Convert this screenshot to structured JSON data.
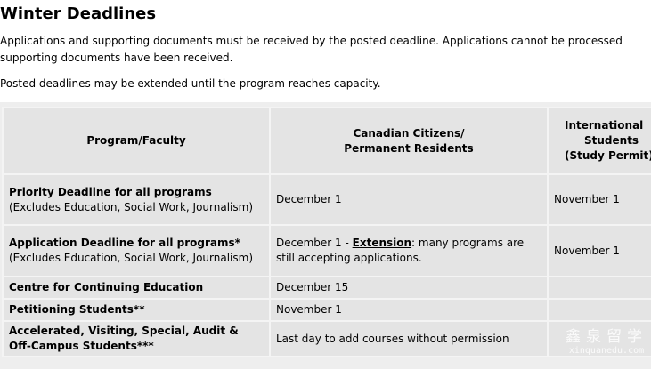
{
  "title": "Winter Deadlines",
  "intro": "Applications and supporting documents must be received by the posted deadline.  Applications cannot be processed",
  "intro_cont": "supporting documents have been received.",
  "note": "Posted deadlines may be extended until the program  reaches capacity.",
  "table": {
    "headers": {
      "program": "Program/Faculty",
      "canadian_1": "Canadian Citizens/",
      "canadian_2": "Permanent Residents",
      "intl_1": "International",
      "intl_2": "Students",
      "intl_3": "(Study Permit)"
    },
    "rows": [
      {
        "program": "Priority Deadline for all programs",
        "sub": "(Excludes Education, Social Work, Journalism)",
        "canadian": "December 1",
        "intl": "November 1"
      },
      {
        "program": "Application Deadline for all programs*",
        "sub": "(Excludes Education, Social Work, Journalism)",
        "canadian_pre": "December 1 - ",
        "canadian_link": "Extension",
        "canadian_post": ": many programs are still accepting applications.",
        "intl": "November 1"
      },
      {
        "program": "Centre for Continuing Education",
        "canadian": "December 15",
        "intl": ""
      },
      {
        "program": "Petitioning Students**",
        "canadian": "November 1",
        "intl": ""
      },
      {
        "program": "Accelerated, Visiting, Special, Audit & Off-Campus Students***",
        "canadian": "Last day to add courses without permission",
        "intl": ""
      }
    ]
  },
  "watermark": {
    "cn": "鑫泉留学",
    "en": "xinquanedu.com"
  }
}
